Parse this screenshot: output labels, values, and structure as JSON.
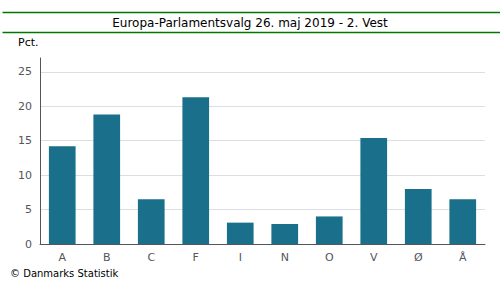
{
  "chart_data": {
    "type": "bar",
    "title": "Europa-Parlamentsvalg 26. maj 2019 - 2. Vest",
    "ylabel": "Pct.",
    "annotations": [
      "© Danmarks Statistik"
    ],
    "categories": [
      "A",
      "B",
      "C",
      "F",
      "I",
      "N",
      "O",
      "V",
      "Ø",
      "Å"
    ],
    "values": [
      14.2,
      18.8,
      6.5,
      21.3,
      3.1,
      2.9,
      4.0,
      15.4,
      8.0,
      6.5
    ],
    "color": "#1a6f8a",
    "ylim": [
      0,
      27
    ],
    "yticks": [
      0,
      5,
      10,
      15,
      20,
      25
    ],
    "grid": true
  }
}
